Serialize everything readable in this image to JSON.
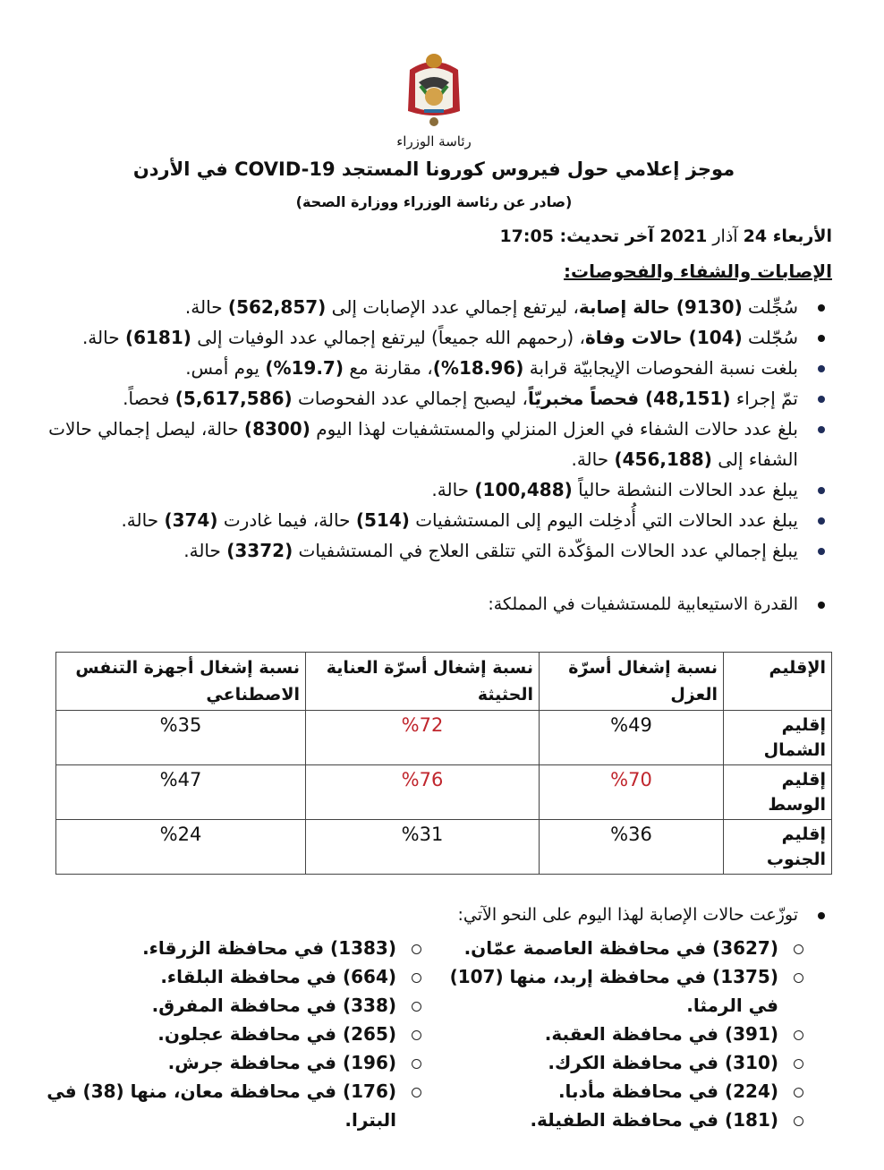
{
  "header": {
    "crest_caption": "رئاسة الوزراء",
    "title": "موجز إعلامي حول فيروس كورونا المستجد COVID-19 في الأردن",
    "subtitle": "(صادر عن رئاسة الوزراء ووزارة الصحة)",
    "dateline": [
      {
        "t": "الأربعاء ",
        "b": true
      },
      {
        "t": "24",
        "b": true
      },
      {
        "t": " آذار ",
        "b": false
      },
      {
        "t": "2021",
        "b": true
      },
      {
        "t": " آخر تحديث: ",
        "b": true
      },
      {
        "t": "17:05",
        "b": true
      }
    ]
  },
  "section_title": "الإصابات والشفاء والفحوصات:",
  "bullets": [
    {
      "marker": "black",
      "segments": [
        {
          "t": "سُجِّلت "
        },
        {
          "t": "(9130) حالة إصابة",
          "b": true
        },
        {
          "t": "، ليرتفع إجمالي عدد الإصابات إلى "
        },
        {
          "t": "(562,857)",
          "b": true
        },
        {
          "t": " حالة."
        }
      ]
    },
    {
      "marker": "black",
      "segments": [
        {
          "t": "سُجّلت "
        },
        {
          "t": "(104) حالات وفاة",
          "b": true
        },
        {
          "t": "، (رحمهم الله جميعاً) ليرتفع إجمالي عدد الوفيات إلى "
        },
        {
          "t": "(6181)",
          "b": true
        },
        {
          "t": " حالة."
        }
      ]
    },
    {
      "marker": "navy",
      "segments": [
        {
          "t": "بلغت نسبة الفحوصات الإيجابيّة قرابة "
        },
        {
          "t": "(18.96%)",
          "b": true
        },
        {
          "t": "، مقارنة مع "
        },
        {
          "t": "(19.7%)",
          "b": true
        },
        {
          "t": " يوم أمس."
        }
      ]
    },
    {
      "marker": "navy",
      "segments": [
        {
          "t": "تمّ إجراء "
        },
        {
          "t": "(48,151) فحصاً مخبريّاً",
          "b": true
        },
        {
          "t": "، ليصبح إجمالي عدد الفحوصات "
        },
        {
          "t": "(5,617,586)",
          "b": true
        },
        {
          "t": " فحصاً."
        }
      ]
    },
    {
      "marker": "navy",
      "segments": [
        {
          "t": "بلغ عدد حالات الشفاء في العزل المنزلي والمستشفيات لهذا اليوم "
        },
        {
          "t": "(8300)",
          "b": true
        },
        {
          "t": " حالة، ليصل إجمالي حالات الشفاء إلى "
        },
        {
          "t": "(456,188)",
          "b": true
        },
        {
          "t": " حالة."
        }
      ]
    },
    {
      "marker": "navy",
      "segments": [
        {
          "t": "يبلغ عدد الحالات النشطة حالياً "
        },
        {
          "t": "(100,488)",
          "b": true
        },
        {
          "t": " حالة."
        }
      ]
    },
    {
      "marker": "navy",
      "segments": [
        {
          "t": "يبلغ عدد الحالات التي أُدخِلت اليوم إلى المستشفيات "
        },
        {
          "t": "(514)",
          "b": true
        },
        {
          "t": " حالة، فيما غادرت "
        },
        {
          "t": "(374)",
          "b": true
        },
        {
          "t": " حالة."
        }
      ]
    },
    {
      "marker": "navy",
      "segments": [
        {
          "t": "يبلغ إجمالي عدد الحالات المؤكّدة التي تتلقى العلاج في المستشفيات "
        },
        {
          "t": "(3372)",
          "b": true
        },
        {
          "t": " حالة."
        }
      ]
    }
  ],
  "capacity_intro": "القدرة الاستيعابية للمستشفيات في المملكة:",
  "capacity_table": {
    "headers": [
      "الإقليم",
      "نسبة إشغال أسرّة العزل",
      "نسبة إشغال أسرّة العناية الحثيثة",
      "نسبة إشغال أجهزة التنفس الاصطناعي"
    ],
    "rows": [
      {
        "region": "إقليم الشمال",
        "isolation": "%49",
        "icu": "%72",
        "ventilators": "%35",
        "highlight": [
          "icu"
        ]
      },
      {
        "region": "إقليم الوسط",
        "isolation": "%70",
        "icu": "%76",
        "ventilators": "%47",
        "highlight": [
          "isolation",
          "icu"
        ]
      },
      {
        "region": "إقليم الجنوب",
        "isolation": "%36",
        "icu": "%31",
        "ventilators": "%24",
        "highlight": []
      }
    ],
    "highlight_color": "#c0262d"
  },
  "distribution": {
    "intro": "توزّعت حالات الإصابة لهذا اليوم على النحو الآتي:",
    "right_column": [
      "(3627) في محافظة العاصمة عمّان.",
      "(1375) في محافظة إربد، منها (107) في الرمثا.",
      "(391) في محافظة العقبة.",
      "(310) في محافظة الكرك.",
      "(224) في محافظة مأدبا.",
      "(181) في محافظة الطفيلة."
    ],
    "left_column": [
      "(1383) في محافظة الزرقاء.",
      "(664) في محافظة البلقاء.",
      "(338) في محافظة المفرق.",
      "(265) في محافظة عجلون.",
      "(196) في محافظة جرش.",
      "(176) في محافظة معان، منها (38) في البترا."
    ]
  }
}
